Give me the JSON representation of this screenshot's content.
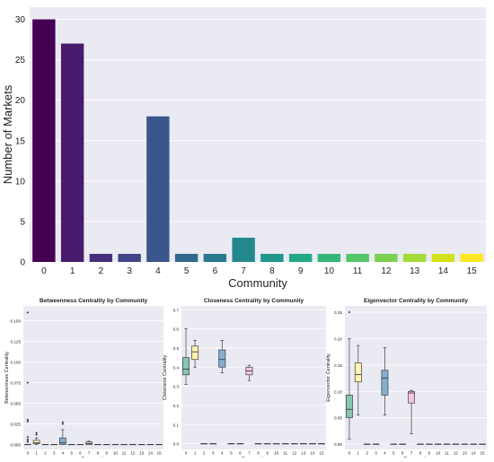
{
  "colors": {
    "panel_bg": "#eaeaf2",
    "grid": "#ffffff",
    "text": "#222222",
    "viridis_16": [
      "#440154",
      "#481a6c",
      "#472f7d",
      "#414487",
      "#39568c",
      "#31688e",
      "#2a788e",
      "#23888e",
      "#1f988b",
      "#22a884",
      "#35b779",
      "#54c568",
      "#7ad151",
      "#a5db36",
      "#d2e21b",
      "#fde725"
    ]
  },
  "chart_data": [
    {
      "type": "bar",
      "title": "",
      "xlabel": "Community",
      "ylabel": "Number of Markets",
      "categories": [
        "0",
        "1",
        "2",
        "3",
        "4",
        "5",
        "6",
        "7",
        "8",
        "9",
        "10",
        "11",
        "12",
        "13",
        "14",
        "15"
      ],
      "values": [
        30,
        27,
        1,
        1,
        18,
        1,
        1,
        3,
        1,
        1,
        1,
        1,
        1,
        1,
        1,
        1
      ],
      "ylim": [
        0,
        31.5
      ],
      "yticks": [
        "0",
        "5",
        "10",
        "15",
        "20",
        "25",
        "30"
      ],
      "grid": true,
      "bar_colors": [
        "#440154",
        "#481a6c",
        "#472f7d",
        "#414487",
        "#39568c",
        "#31688e",
        "#2a788e",
        "#23888e",
        "#1f988b",
        "#22a884",
        "#35b779",
        "#54c568",
        "#7ad151",
        "#a5db36",
        "#d2e21b",
        "#fde725"
      ]
    },
    {
      "type": "box",
      "title": "Betweenness Centrality by Community",
      "xlabel": "Community",
      "ylabel": "Betweenness Centrality",
      "categories": [
        "0",
        "1",
        "2",
        "3",
        "4",
        "5",
        "6",
        "7",
        "8",
        "9",
        "10",
        "11",
        "12",
        "13",
        "14",
        "15"
      ],
      "ylim": [
        -0.006,
        0.168
      ],
      "yticks": [
        {
          "value": 0.0,
          "label": "0.000"
        },
        {
          "value": 0.025,
          "label": "0.025"
        },
        {
          "value": 0.05,
          "label": "0.050"
        },
        {
          "value": 0.075,
          "label": "0.075"
        },
        {
          "value": 0.1,
          "label": "0.100"
        },
        {
          "value": 0.125,
          "label": "0.125"
        },
        {
          "value": 0.15,
          "label": "0.150"
        }
      ],
      "boxes": [
        {
          "category": "0",
          "q1": 0.0,
          "median": 0.0,
          "q3": 0.0,
          "whisker_low": 0.0,
          "whisker_high": 0.0,
          "outliers": [
            0.003,
            0.005,
            0.006,
            0.009,
            0.028,
            0.03,
            0.075,
            0.16
          ],
          "color": "#88c5b4"
        },
        {
          "category": "1",
          "q1": 0.001,
          "median": 0.002,
          "q3": 0.005,
          "whisker_low": 0.0,
          "whisker_high": 0.008,
          "outliers": [
            0.012,
            0.014
          ],
          "color": "#fff2ae"
        },
        {
          "category": "2",
          "q1": 0.0,
          "median": 0.0,
          "q3": 0.0,
          "whisker_low": 0.0,
          "whisker_high": 0.0,
          "outliers": [],
          "color": "#d8b7d9"
        },
        {
          "category": "3",
          "q1": 0.0,
          "median": 0.0,
          "q3": 0.0,
          "whisker_low": 0.0,
          "whisker_high": 0.0,
          "outliers": [],
          "color": "#f0a48f"
        },
        {
          "category": "4",
          "q1": 0.0,
          "median": 0.002,
          "q3": 0.008,
          "whisker_low": 0.0,
          "whisker_high": 0.018,
          "outliers": [
            0.025,
            0.027
          ],
          "color": "#84aed0"
        },
        {
          "category": "5",
          "q1": 0.0,
          "median": 0.0,
          "q3": 0.0,
          "whisker_low": 0.0,
          "whisker_high": 0.0,
          "outliers": [],
          "color": "#f3b47e"
        },
        {
          "category": "6",
          "q1": 0.0,
          "median": 0.0,
          "q3": 0.0,
          "whisker_low": 0.0,
          "whisker_high": 0.0,
          "outliers": [],
          "color": "#c1df8f"
        },
        {
          "category": "7",
          "q1": 0.0,
          "median": 0.001,
          "q3": 0.003,
          "whisker_low": 0.0,
          "whisker_high": 0.004,
          "outliers": [],
          "color": "#f5c8df"
        },
        {
          "category": "8",
          "q1": 0.0,
          "median": 0.0,
          "q3": 0.0,
          "whisker_low": 0.0,
          "whisker_high": 0.0,
          "outliers": [],
          "color": "#d4d4d4"
        },
        {
          "category": "9",
          "q1": 0.0,
          "median": 0.0,
          "q3": 0.0,
          "whisker_low": 0.0,
          "whisker_high": 0.0,
          "outliers": [],
          "color": "#c9b2d9"
        },
        {
          "category": "10",
          "q1": 0.0,
          "median": 0.0,
          "q3": 0.0,
          "whisker_low": 0.0,
          "whisker_high": 0.0,
          "outliers": [],
          "color": "#c9e8bf"
        },
        {
          "category": "11",
          "q1": 0.0,
          "median": 0.0,
          "q3": 0.0,
          "whisker_low": 0.0,
          "whisker_high": 0.0,
          "outliers": [],
          "color": "#fff1a8"
        },
        {
          "category": "12",
          "q1": 0.0,
          "median": 0.0,
          "q3": 0.0,
          "whisker_low": 0.0,
          "whisker_high": 0.0,
          "outliers": [],
          "color": "#88c5b4"
        },
        {
          "category": "13",
          "q1": 0.0,
          "median": 0.0,
          "q3": 0.0,
          "whisker_low": 0.0,
          "whisker_high": 0.0,
          "outliers": [],
          "color": "#fff2ae"
        },
        {
          "category": "14",
          "q1": 0.0,
          "median": 0.0,
          "q3": 0.0,
          "whisker_low": 0.0,
          "whisker_high": 0.0,
          "outliers": [],
          "color": "#d8b7d9"
        },
        {
          "category": "15",
          "q1": 0.0,
          "median": 0.0,
          "q3": 0.0,
          "whisker_low": 0.0,
          "whisker_high": 0.0,
          "outliers": [],
          "color": "#f0a48f"
        }
      ]
    },
    {
      "type": "box",
      "title": "Closeness Centrality by Community",
      "xlabel": "Community",
      "ylabel": "Closeness Centrality",
      "categories": [
        "0",
        "1",
        "2",
        "3",
        "4",
        "5",
        "6",
        "7",
        "8",
        "9",
        "10",
        "11",
        "12",
        "13",
        "14",
        "15"
      ],
      "ylim": [
        -0.03,
        0.72
      ],
      "yticks": [
        {
          "value": 0.0,
          "label": "0.0"
        },
        {
          "value": 0.1,
          "label": "0.1"
        },
        {
          "value": 0.2,
          "label": "0.2"
        },
        {
          "value": 0.3,
          "label": "0.3"
        },
        {
          "value": 0.4,
          "label": "0.4"
        },
        {
          "value": 0.5,
          "label": "0.5"
        },
        {
          "value": 0.6,
          "label": "0.6"
        },
        {
          "value": 0.7,
          "label": "0.7"
        }
      ],
      "boxes": [
        {
          "category": "0",
          "q1": 0.36,
          "median": 0.39,
          "q3": 0.45,
          "whisker_low": 0.31,
          "whisker_high": 0.6,
          "outliers": [],
          "color": "#88c5b4"
        },
        {
          "category": "1",
          "q1": 0.44,
          "median": 0.48,
          "q3": 0.51,
          "whisker_low": 0.4,
          "whisker_high": 0.54,
          "outliers": [],
          "color": "#fff2ae"
        },
        {
          "category": "2",
          "q1": 0.0,
          "median": 0.0,
          "q3": 0.0,
          "whisker_low": 0.0,
          "whisker_high": 0.0,
          "outliers": [],
          "color": "#d8b7d9"
        },
        {
          "category": "3",
          "q1": 0.0,
          "median": 0.0,
          "q3": 0.0,
          "whisker_low": 0.0,
          "whisker_high": 0.0,
          "outliers": [],
          "color": "#f0a48f"
        },
        {
          "category": "4",
          "q1": 0.4,
          "median": 0.44,
          "q3": 0.49,
          "whisker_low": 0.37,
          "whisker_high": 0.54,
          "outliers": [],
          "color": "#84aed0"
        },
        {
          "category": "5",
          "q1": 0.0,
          "median": 0.0,
          "q3": 0.0,
          "whisker_low": 0.0,
          "whisker_high": 0.0,
          "outliers": [],
          "color": "#f3b47e"
        },
        {
          "category": "6",
          "q1": 0.0,
          "median": 0.0,
          "q3": 0.0,
          "whisker_low": 0.0,
          "whisker_high": 0.0,
          "outliers": [],
          "color": "#c1df8f"
        },
        {
          "category": "7",
          "q1": 0.36,
          "median": 0.38,
          "q3": 0.4,
          "whisker_low": 0.33,
          "whisker_high": 0.41,
          "outliers": [],
          "color": "#f5c8df"
        },
        {
          "category": "8",
          "q1": 0.0,
          "median": 0.0,
          "q3": 0.0,
          "whisker_low": 0.0,
          "whisker_high": 0.0,
          "outliers": [],
          "color": "#d4d4d4"
        },
        {
          "category": "9",
          "q1": 0.0,
          "median": 0.0,
          "q3": 0.0,
          "whisker_low": 0.0,
          "whisker_high": 0.0,
          "outliers": [],
          "color": "#c9b2d9"
        },
        {
          "category": "10",
          "q1": 0.0,
          "median": 0.0,
          "q3": 0.0,
          "whisker_low": 0.0,
          "whisker_high": 0.0,
          "outliers": [],
          "color": "#c9e8bf"
        },
        {
          "category": "11",
          "q1": 0.0,
          "median": 0.0,
          "q3": 0.0,
          "whisker_low": 0.0,
          "whisker_high": 0.0,
          "outliers": [],
          "color": "#fff1a8"
        },
        {
          "category": "12",
          "q1": 0.0,
          "median": 0.0,
          "q3": 0.0,
          "whisker_low": 0.0,
          "whisker_high": 0.0,
          "outliers": [],
          "color": "#88c5b4"
        },
        {
          "category": "13",
          "q1": 0.0,
          "median": 0.0,
          "q3": 0.0,
          "whisker_low": 0.0,
          "whisker_high": 0.0,
          "outliers": [],
          "color": "#fff2ae"
        },
        {
          "category": "14",
          "q1": 0.0,
          "median": 0.0,
          "q3": 0.0,
          "whisker_low": 0.0,
          "whisker_high": 0.0,
          "outliers": [],
          "color": "#d8b7d9"
        },
        {
          "category": "15",
          "q1": 0.0,
          "median": 0.0,
          "q3": 0.0,
          "whisker_low": 0.0,
          "whisker_high": 0.0,
          "outliers": [],
          "color": "#f0a48f"
        }
      ]
    },
    {
      "type": "box",
      "title": "Eigenvector Centrality by Community",
      "xlabel": "Community",
      "ylabel": "Eigenvector Centrality",
      "categories": [
        "0",
        "1",
        "2",
        "3",
        "4",
        "5",
        "6",
        "7",
        "8",
        "9",
        "10",
        "11",
        "12",
        "13",
        "14",
        "15"
      ],
      "ylim": [
        -0.01,
        0.262
      ],
      "yticks": [
        {
          "value": 0.0,
          "label": "0.00"
        },
        {
          "value": 0.05,
          "label": "0.05"
        },
        {
          "value": 0.1,
          "label": "0.10"
        },
        {
          "value": 0.15,
          "label": "0.15"
        },
        {
          "value": 0.2,
          "label": "0.20"
        },
        {
          "value": 0.25,
          "label": "0.25"
        }
      ],
      "boxes": [
        {
          "category": "0",
          "q1": 0.05,
          "median": 0.066,
          "q3": 0.093,
          "whisker_low": 0.01,
          "whisker_high": 0.2,
          "outliers": [
            0.25
          ],
          "color": "#88c5b4"
        },
        {
          "category": "1",
          "q1": 0.118,
          "median": 0.132,
          "q3": 0.154,
          "whisker_low": 0.055,
          "whisker_high": 0.187,
          "outliers": [],
          "color": "#fff2ae"
        },
        {
          "category": "2",
          "q1": 0.0,
          "median": 0.0,
          "q3": 0.0,
          "whisker_low": 0.0,
          "whisker_high": 0.0,
          "outliers": [],
          "color": "#d8b7d9"
        },
        {
          "category": "3",
          "q1": 0.0,
          "median": 0.0,
          "q3": 0.0,
          "whisker_low": 0.0,
          "whisker_high": 0.0,
          "outliers": [],
          "color": "#f0a48f"
        },
        {
          "category": "4",
          "q1": 0.093,
          "median": 0.125,
          "q3": 0.14,
          "whisker_low": 0.055,
          "whisker_high": 0.183,
          "outliers": [],
          "color": "#84aed0"
        },
        {
          "category": "5",
          "q1": 0.0,
          "median": 0.0,
          "q3": 0.0,
          "whisker_low": 0.0,
          "whisker_high": 0.0,
          "outliers": [],
          "color": "#f3b47e"
        },
        {
          "category": "6",
          "q1": 0.0,
          "median": 0.0,
          "q3": 0.0,
          "whisker_low": 0.0,
          "whisker_high": 0.0,
          "outliers": [],
          "color": "#c1df8f"
        },
        {
          "category": "7",
          "q1": 0.078,
          "median": 0.097,
          "q3": 0.1,
          "whisker_low": 0.02,
          "whisker_high": 0.102,
          "outliers": [],
          "color": "#f5c8df"
        },
        {
          "category": "8",
          "q1": 0.0,
          "median": 0.0,
          "q3": 0.0,
          "whisker_low": 0.0,
          "whisker_high": 0.0,
          "outliers": [],
          "color": "#d4d4d4"
        },
        {
          "category": "9",
          "q1": 0.0,
          "median": 0.0,
          "q3": 0.0,
          "whisker_low": 0.0,
          "whisker_high": 0.0,
          "outliers": [],
          "color": "#c9b2d9"
        },
        {
          "category": "10",
          "q1": 0.0,
          "median": 0.0,
          "q3": 0.0,
          "whisker_low": 0.0,
          "whisker_high": 0.0,
          "outliers": [],
          "color": "#c9e8bf"
        },
        {
          "category": "11",
          "q1": 0.0,
          "median": 0.0,
          "q3": 0.0,
          "whisker_low": 0.0,
          "whisker_high": 0.0,
          "outliers": [],
          "color": "#fff1a8"
        },
        {
          "category": "12",
          "q1": 0.0,
          "median": 0.0,
          "q3": 0.0,
          "whisker_low": 0.0,
          "whisker_high": 0.0,
          "outliers": [],
          "color": "#88c5b4"
        },
        {
          "category": "13",
          "q1": 0.0,
          "median": 0.0,
          "q3": 0.0,
          "whisker_low": 0.0,
          "whisker_high": 0.0,
          "outliers": [],
          "color": "#fff2ae"
        },
        {
          "category": "14",
          "q1": 0.0,
          "median": 0.0,
          "q3": 0.0,
          "whisker_low": 0.0,
          "whisker_high": 0.0,
          "outliers": [],
          "color": "#d8b7d9"
        },
        {
          "category": "15",
          "q1": 0.0,
          "median": 0.0,
          "q3": 0.0,
          "whisker_low": 0.0,
          "whisker_high": 0.0,
          "outliers": [],
          "color": "#f0a48f"
        }
      ]
    }
  ]
}
